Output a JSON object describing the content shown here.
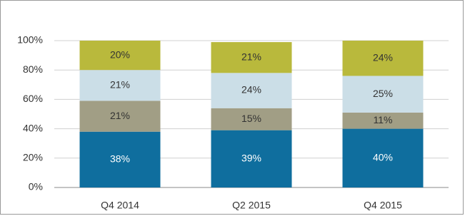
{
  "chart_data": {
    "type": "stacked_bar",
    "categories": [
      "Q4 2014",
      "Q2 2015",
      "Q4 2015"
    ],
    "series": [
      {
        "color": "#0f6e9e",
        "label_color": "#ffffff",
        "values": [
          38,
          39,
          40
        ],
        "value_labels": [
          "38%",
          "39%",
          "40%"
        ]
      },
      {
        "color": "#a19e85",
        "label_color": "#333333",
        "values": [
          21,
          15,
          11
        ],
        "value_labels": [
          "21%",
          "15%",
          "11%"
        ]
      },
      {
        "color": "#cbdee7",
        "label_color": "#333333",
        "values": [
          21,
          24,
          25
        ],
        "value_labels": [
          "21%",
          "24%",
          "25%"
        ]
      },
      {
        "color": "#b9b93c",
        "label_color": "#333333",
        "values": [
          20,
          21,
          24
        ],
        "value_labels": [
          "20%",
          "21%",
          "24%"
        ]
      }
    ],
    "ylim": [
      0,
      100
    ],
    "yticks": [
      {
        "value": 0,
        "label": "0%"
      },
      {
        "value": 20,
        "label": "20%"
      },
      {
        "value": 40,
        "label": "40%"
      },
      {
        "value": 60,
        "label": "60%"
      },
      {
        "value": 80,
        "label": "80%"
      },
      {
        "value": 100,
        "label": "100%"
      }
    ],
    "grid": true
  }
}
